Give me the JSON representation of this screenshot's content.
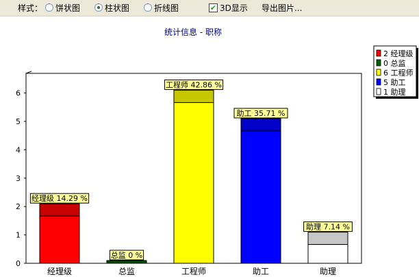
{
  "toolbar": {
    "style_label": "样式：",
    "options": [
      {
        "label": "饼状图",
        "selected": false
      },
      {
        "label": "柱状图",
        "selected": true
      },
      {
        "label": "折线图",
        "selected": false
      }
    ],
    "three_d": {
      "label": "3D显示",
      "checked": true
    },
    "export_label": "导出图片..."
  },
  "chart_data": {
    "type": "bar",
    "title": "统计信息 - 职称",
    "categories": [
      "经理级",
      "总监",
      "工程师",
      "助工",
      "助理"
    ],
    "values": [
      2,
      0,
      6,
      5,
      1
    ],
    "percent_labels": [
      "经理级 14.29 %",
      "总监 0 %",
      "工程师 42.86 %",
      "助工 35.71 %",
      "助理 7.14 %"
    ],
    "colors": [
      "#ff0000",
      "#006600",
      "#ffff00",
      "#0000ff",
      "#ffffff"
    ],
    "legend": [
      {
        "text": "2 经理级",
        "color": "#ff0000"
      },
      {
        "text": "0 总监",
        "color": "#006600"
      },
      {
        "text": "6 工程师",
        "color": "#ffff00"
      },
      {
        "text": "5 助工",
        "color": "#0000ff"
      },
      {
        "text": "1 助理",
        "color": "#ffffff"
      }
    ],
    "yticks": [
      0,
      1,
      2,
      3,
      4,
      5,
      6
    ],
    "ylim": [
      0,
      6.5
    ],
    "grid": true,
    "legend_position": "top-right"
  }
}
